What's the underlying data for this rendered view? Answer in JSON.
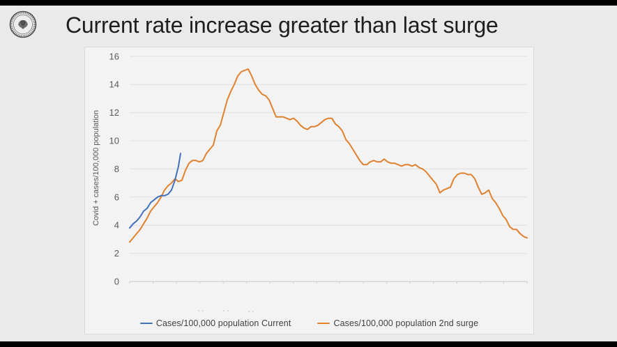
{
  "slide": {
    "title": "Current rate increase greater than last surge",
    "logo_name": "county-seal",
    "background_color": "#eaeaea",
    "letterbox_color": "#000000"
  },
  "chart_data": {
    "type": "line",
    "title": "",
    "xlabel": "",
    "ylabel": "Covid + cases/100,000 population",
    "ylim": [
      0,
      16
    ],
    "xlim": [
      0,
      114
    ],
    "y_ticks": [
      16,
      14,
      12,
      10,
      8,
      6,
      4,
      2,
      0
    ],
    "grid": true,
    "x_axis": {
      "labels_visible": false,
      "tick_count": 18
    },
    "legend_position": "bottom",
    "series": [
      {
        "name": "Cases/100,000 population Current",
        "color": "#4170bd",
        "x": [
          0,
          1,
          2,
          3,
          4,
          5,
          6,
          7,
          8,
          9,
          10,
          11,
          12,
          13,
          14,
          14.6
        ],
        "values": [
          3.8,
          4.1,
          4.3,
          4.6,
          5.0,
          5.2,
          5.6,
          5.8,
          6.0,
          6.1,
          6.1,
          6.2,
          6.5,
          7.2,
          8.2,
          9.1
        ]
      },
      {
        "name": "Cases/100,000 population 2nd surge",
        "color": "#e0812f",
        "x": [
          0,
          1,
          2,
          3,
          4,
          5,
          6,
          7,
          8,
          9,
          10,
          11,
          12,
          13,
          14,
          15,
          16,
          17,
          18,
          19,
          20,
          21,
          22,
          23,
          24,
          25,
          26,
          27,
          28,
          29,
          30,
          31,
          32,
          33,
          34,
          35,
          36,
          37,
          38,
          39,
          40,
          41,
          42,
          43,
          44,
          45,
          46,
          47,
          48,
          49,
          50,
          51,
          52,
          53,
          54,
          55,
          56,
          57,
          58,
          59,
          60,
          61,
          62,
          63,
          64,
          65,
          66,
          67,
          68,
          69,
          70,
          71,
          72,
          73,
          74,
          75,
          76,
          77,
          78,
          79,
          80,
          81,
          82,
          83,
          84,
          85,
          86,
          87,
          88,
          89,
          90,
          91,
          92,
          93,
          94,
          95,
          96,
          97,
          98,
          99,
          100,
          101,
          102,
          103,
          104,
          105,
          106,
          107,
          108,
          109,
          110,
          111,
          112,
          113,
          114
        ],
        "values": [
          2.8,
          3.1,
          3.4,
          3.7,
          4.1,
          4.5,
          5.0,
          5.3,
          5.6,
          6.0,
          6.5,
          6.8,
          7.0,
          7.3,
          7.1,
          7.2,
          7.9,
          8.4,
          8.6,
          8.6,
          8.5,
          8.6,
          9.1,
          9.4,
          9.7,
          10.7,
          11.1,
          12.0,
          12.9,
          13.5,
          14.0,
          14.6,
          14.9,
          15.0,
          15.1,
          14.6,
          14.0,
          13.6,
          13.3,
          13.2,
          12.9,
          12.3,
          11.7,
          11.7,
          11.7,
          11.6,
          11.5,
          11.6,
          11.4,
          11.1,
          10.9,
          10.8,
          11.0,
          11.0,
          11.1,
          11.3,
          11.5,
          11.6,
          11.6,
          11.2,
          11.0,
          10.7,
          10.1,
          9.8,
          9.4,
          9.0,
          8.6,
          8.3,
          8.3,
          8.5,
          8.6,
          8.5,
          8.5,
          8.7,
          8.5,
          8.4,
          8.4,
          8.3,
          8.2,
          8.3,
          8.3,
          8.2,
          8.3,
          8.1,
          8.0,
          7.8,
          7.5,
          7.2,
          6.9,
          6.3,
          6.5,
          6.6,
          6.7,
          7.3,
          7.6,
          7.7,
          7.7,
          7.6,
          7.6,
          7.3,
          6.7,
          6.2,
          6.3,
          6.5,
          5.9,
          5.6,
          5.2,
          4.7,
          4.4,
          3.9,
          3.7,
          3.7,
          3.4,
          3.2,
          3.1
        ]
      }
    ],
    "style": {
      "panel_background": "#f3f3f3",
      "panel_border": "#dadada",
      "gridline_color": "#e0e0e0",
      "axis_line_color": "#c8c8c8",
      "tick_mark_color": "#cfcfcf",
      "tick_label_color": "#595959",
      "axis_title_color": "#595959",
      "legend_text_color": "#404040"
    }
  }
}
